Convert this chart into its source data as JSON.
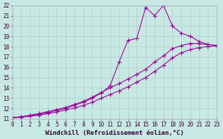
{
  "xlabel": "Windchill (Refroidissement éolien,°C)",
  "xlim": [
    0,
    23
  ],
  "ylim": [
    11,
    22
  ],
  "xticks": [
    0,
    1,
    2,
    3,
    4,
    5,
    6,
    7,
    8,
    9,
    10,
    11,
    12,
    13,
    14,
    15,
    16,
    17,
    18,
    19,
    20,
    21,
    22,
    23
  ],
  "yticks": [
    11,
    12,
    13,
    14,
    15,
    16,
    17,
    18,
    19,
    20,
    21,
    22
  ],
  "bg_color": "#c8e8e4",
  "line_color": "#990099",
  "grid_color": "#b0ccc8",
  "line1_x": [
    0,
    1,
    2,
    3,
    4,
    5,
    6,
    7,
    8,
    9,
    10,
    11,
    12,
    13,
    14,
    15,
    16,
    17,
    18,
    19,
    20,
    21,
    22,
    23
  ],
  "line1_y": [
    11.1,
    11.15,
    11.25,
    11.35,
    11.5,
    11.65,
    11.85,
    12.05,
    12.3,
    12.6,
    13.0,
    13.35,
    13.7,
    14.1,
    14.55,
    15.0,
    15.6,
    16.2,
    16.9,
    17.4,
    17.7,
    17.9,
    18.0,
    18.1
  ],
  "line2_x": [
    0,
    1,
    2,
    3,
    4,
    5,
    6,
    7,
    8,
    9,
    10,
    11,
    12,
    13,
    14,
    15,
    16,
    17,
    18,
    19,
    20,
    21,
    22,
    23
  ],
  "line2_y": [
    11.1,
    11.2,
    11.35,
    11.5,
    11.7,
    11.9,
    12.1,
    12.4,
    12.7,
    13.1,
    13.55,
    14.0,
    14.4,
    14.85,
    15.3,
    15.8,
    16.5,
    17.1,
    17.8,
    18.1,
    18.3,
    18.3,
    18.2,
    18.1
  ],
  "line3_x": [
    0,
    1,
    2,
    3,
    4,
    5,
    6,
    7,
    8,
    9,
    10,
    11,
    12,
    13,
    14,
    15,
    16,
    17,
    18,
    19,
    20,
    21,
    22,
    23
  ],
  "line3_y": [
    11.1,
    11.2,
    11.3,
    11.45,
    11.6,
    11.8,
    12.0,
    12.3,
    12.6,
    13.0,
    13.5,
    14.2,
    16.5,
    18.6,
    18.8,
    21.8,
    21.0,
    22.0,
    20.0,
    19.3,
    19.0,
    18.5,
    18.2,
    18.1
  ],
  "marker": "+",
  "markersize": 4,
  "linewidth": 0.8,
  "tick_fontsize": 5.5,
  "xlabel_fontsize": 6.5
}
